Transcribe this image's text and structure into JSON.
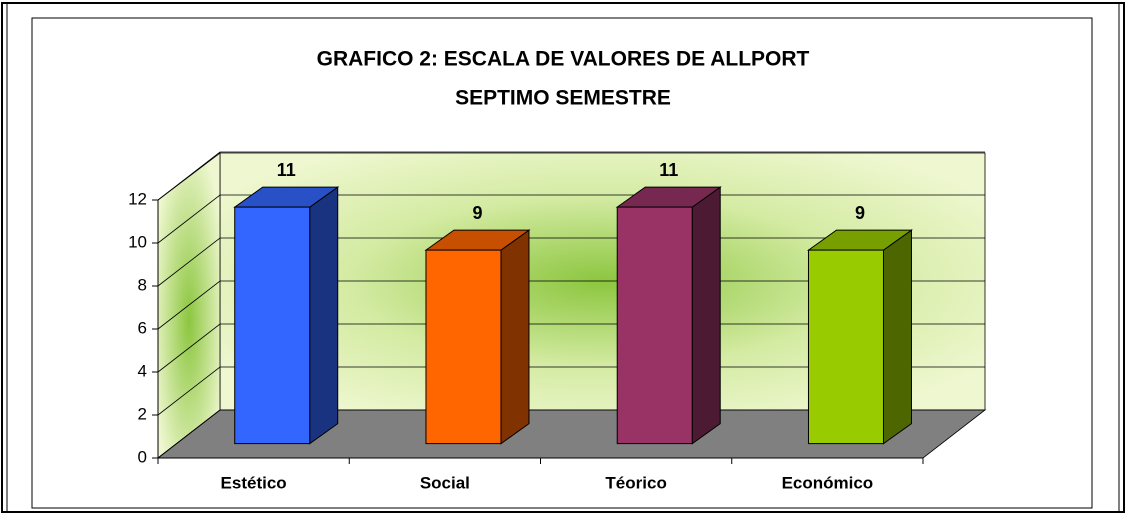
{
  "chart_data": {
    "type": "bar3d",
    "title": [
      "GRAFICO 2: ESCALA DE VALORES DE ALLPORT",
      "SEPTIMO SEMESTRE"
    ],
    "categories": [
      "Estético",
      "Social",
      "Téorico",
      "Económico"
    ],
    "values": [
      11,
      9,
      11,
      9
    ],
    "colors": [
      "#3366ff",
      "#ff6600",
      "#993366",
      "#99cc00"
    ],
    "ylim": [
      0,
      12
    ],
    "yticks": [
      0,
      2,
      4,
      6,
      8,
      10,
      12
    ],
    "grid": true
  }
}
